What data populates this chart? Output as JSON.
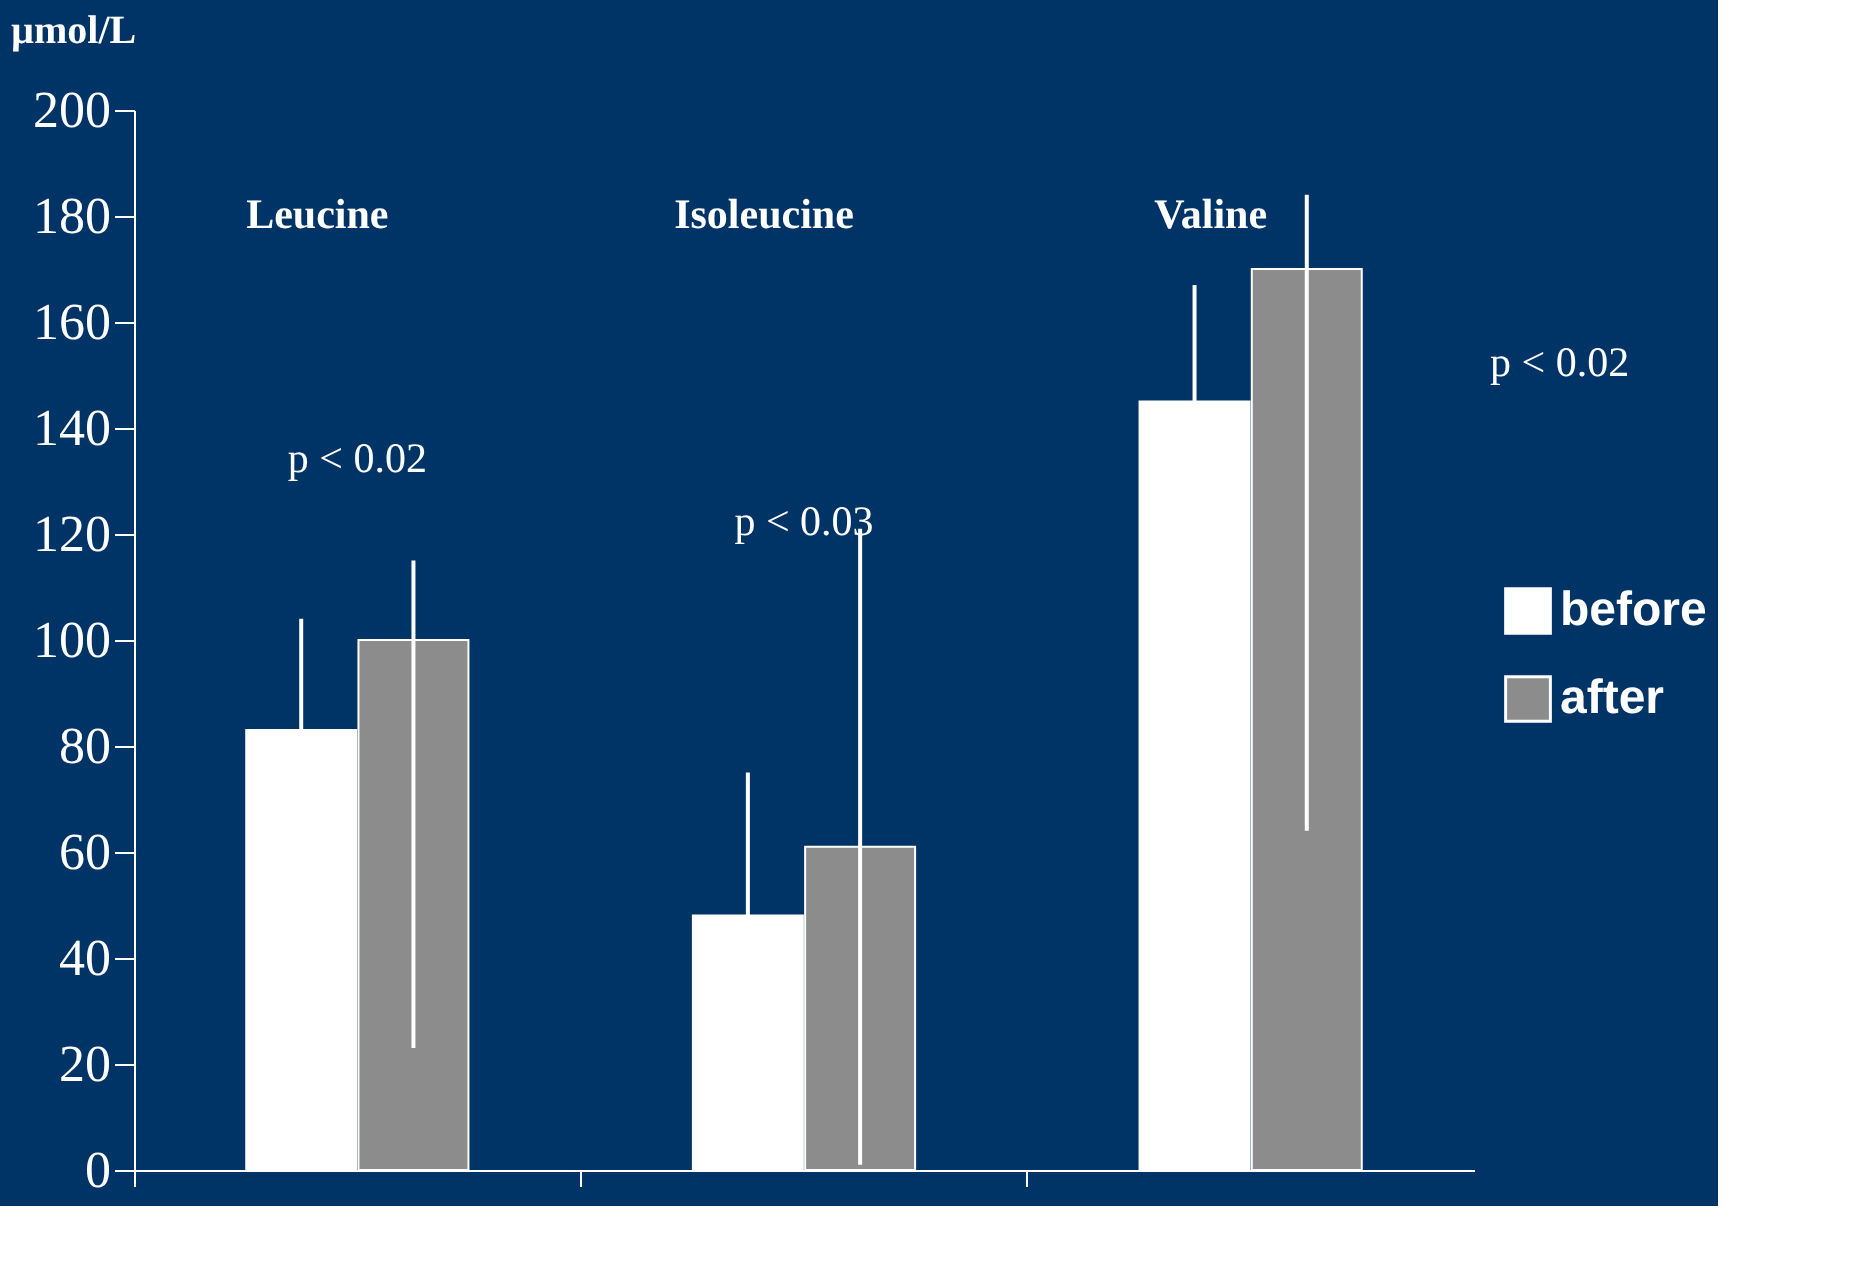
{
  "chart_data": {
    "type": "bar",
    "ylabel": "µmol/L",
    "categories": [
      "Leucine",
      "Isoleucine",
      "Valine"
    ],
    "series": [
      {
        "name": "before",
        "color": "#ffffff",
        "values": [
          83,
          48,
          145
        ],
        "errors": [
          21,
          27,
          22
        ]
      },
      {
        "name": "after",
        "color": "#8c8c8c",
        "values": [
          100,
          61,
          170
        ],
        "errors": [
          [
            23,
            115
          ],
          60,
          [
            64,
            184
          ]
        ]
      }
    ],
    "ylim": [
      0,
      200
    ],
    "yticks": [
      0,
      20,
      40,
      60,
      80,
      100,
      120,
      140,
      160,
      180,
      200
    ],
    "annotations": [
      "p < 0.02",
      "p < 0.03",
      "p < 0.02"
    ],
    "grid": false,
    "legend": "right",
    "tick_labels": "y"
  }
}
